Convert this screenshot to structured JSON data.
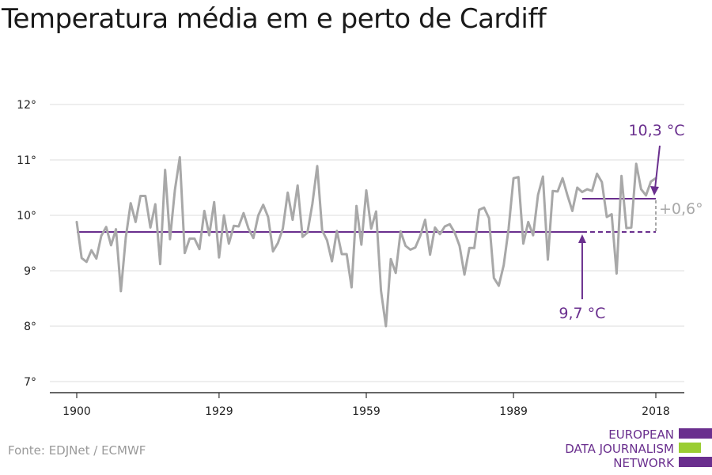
{
  "title": "Temperatura média em e perto de Cardiff",
  "source": "Fonte: EDJNet / ECMWF",
  "logo": {
    "lines": [
      "EUROPEAN",
      "DATA JOURNALISM",
      "NETWORK"
    ],
    "colors": {
      "text": "#6a2f8e",
      "bar_purple": "#6a2f8e",
      "bar_green": "#9acd32"
    }
  },
  "chart_data": {
    "type": "line",
    "title": "Temperatura média em e perto de Cardiff",
    "xlabel": "",
    "ylabel": "",
    "xlim": [
      1900,
      2018
    ],
    "ylim": [
      7,
      12
    ],
    "x_ticks": [
      1900,
      1929,
      1959,
      1989,
      2018
    ],
    "y_ticks": [
      {
        "value": 7,
        "label": "7°"
      },
      {
        "value": 8,
        "label": "8°"
      },
      {
        "value": 9,
        "label": "9°"
      },
      {
        "value": 10,
        "label": "10°"
      },
      {
        "value": 11,
        "label": "11°"
      },
      {
        "value": 12,
        "label": "12°"
      }
    ],
    "grid": true,
    "colors": {
      "series": "#a8a8a8",
      "baseline": "#6a2f8e",
      "recent": "#6a2f8e",
      "difference": "#a8a8a8",
      "grid": "#dddddd",
      "axis": "#333333"
    },
    "series": [
      {
        "x": [
          1900,
          1901,
          1902,
          1903,
          1904,
          1905,
          1906,
          1907,
          1908,
          1909,
          1910,
          1911,
          1912,
          1913,
          1914,
          1915,
          1916,
          1917,
          1918,
          1919,
          1920,
          1921,
          1922,
          1923,
          1924,
          1925,
          1926,
          1927,
          1928,
          1929,
          1930,
          1931,
          1932,
          1933,
          1934,
          1935,
          1936,
          1937,
          1938,
          1939,
          1940,
          1941,
          1942,
          1943,
          1944,
          1945,
          1946,
          1947,
          1948,
          1949,
          1950,
          1951,
          1952,
          1953,
          1954,
          1955,
          1956,
          1957,
          1958,
          1959,
          1960,
          1961,
          1962,
          1963,
          1964,
          1965,
          1966,
          1967,
          1968,
          1969,
          1970,
          1971,
          1972,
          1973,
          1974,
          1975,
          1976,
          1977,
          1978,
          1979,
          1980,
          1981,
          1982,
          1983,
          1984,
          1985,
          1986,
          1987,
          1988,
          1989,
          1990,
          1991,
          1992,
          1993,
          1994,
          1995,
          1996,
          1997,
          1998,
          1999,
          2000,
          2001,
          2002,
          2003,
          2004,
          2005,
          2006,
          2007,
          2008,
          2009,
          2010,
          2011,
          2012,
          2013,
          2014,
          2015,
          2016,
          2017,
          2018
        ],
        "values": [
          9.88,
          9.23,
          9.16,
          9.37,
          9.22,
          9.63,
          9.79,
          9.46,
          9.75,
          8.63,
          9.6,
          10.22,
          9.88,
          10.35,
          10.35,
          9.78,
          10.2,
          9.12,
          10.82,
          9.57,
          10.46,
          11.05,
          9.32,
          9.58,
          9.58,
          9.39,
          10.08,
          9.64,
          10.24,
          9.24,
          10.0,
          9.49,
          9.81,
          9.8,
          10.04,
          9.76,
          9.59,
          10.0,
          10.19,
          9.97,
          9.35,
          9.5,
          9.76,
          10.41,
          9.92,
          10.54,
          9.61,
          9.69,
          10.2,
          10.89,
          9.73,
          9.55,
          9.17,
          9.72,
          9.3,
          9.3,
          8.7,
          10.17,
          9.47,
          10.45,
          9.76,
          10.07,
          8.64,
          8.0,
          9.21,
          8.96,
          9.71,
          9.45,
          9.38,
          9.42,
          9.63,
          9.92,
          9.29,
          9.78,
          9.66,
          9.8,
          9.84,
          9.69,
          9.45,
          8.93,
          9.41,
          9.41,
          10.1,
          10.14,
          9.95,
          8.87,
          8.73,
          9.1,
          9.76,
          10.67,
          10.69,
          9.49,
          9.88,
          9.64,
          10.37,
          10.7,
          9.2,
          10.44,
          10.43,
          10.67,
          10.36,
          10.08,
          10.5,
          10.42,
          10.47,
          10.44,
          10.75,
          10.6,
          9.97,
          10.02,
          8.95,
          10.71,
          9.77,
          9.78,
          10.93,
          10.47,
          10.36,
          10.61,
          10.67
        ]
      }
    ],
    "baseline": {
      "value": 9.7,
      "x_start": 1900,
      "x_solid_end": 2003,
      "x_end": 2018,
      "label": "9,7 °C",
      "label_x": 2003
    },
    "recent": {
      "value": 10.3,
      "x_start": 2003,
      "x_end": 2018,
      "label": "10,3 °C",
      "label_x": 2018
    },
    "difference": {
      "label": "+0,6°",
      "x": 2018
    }
  }
}
